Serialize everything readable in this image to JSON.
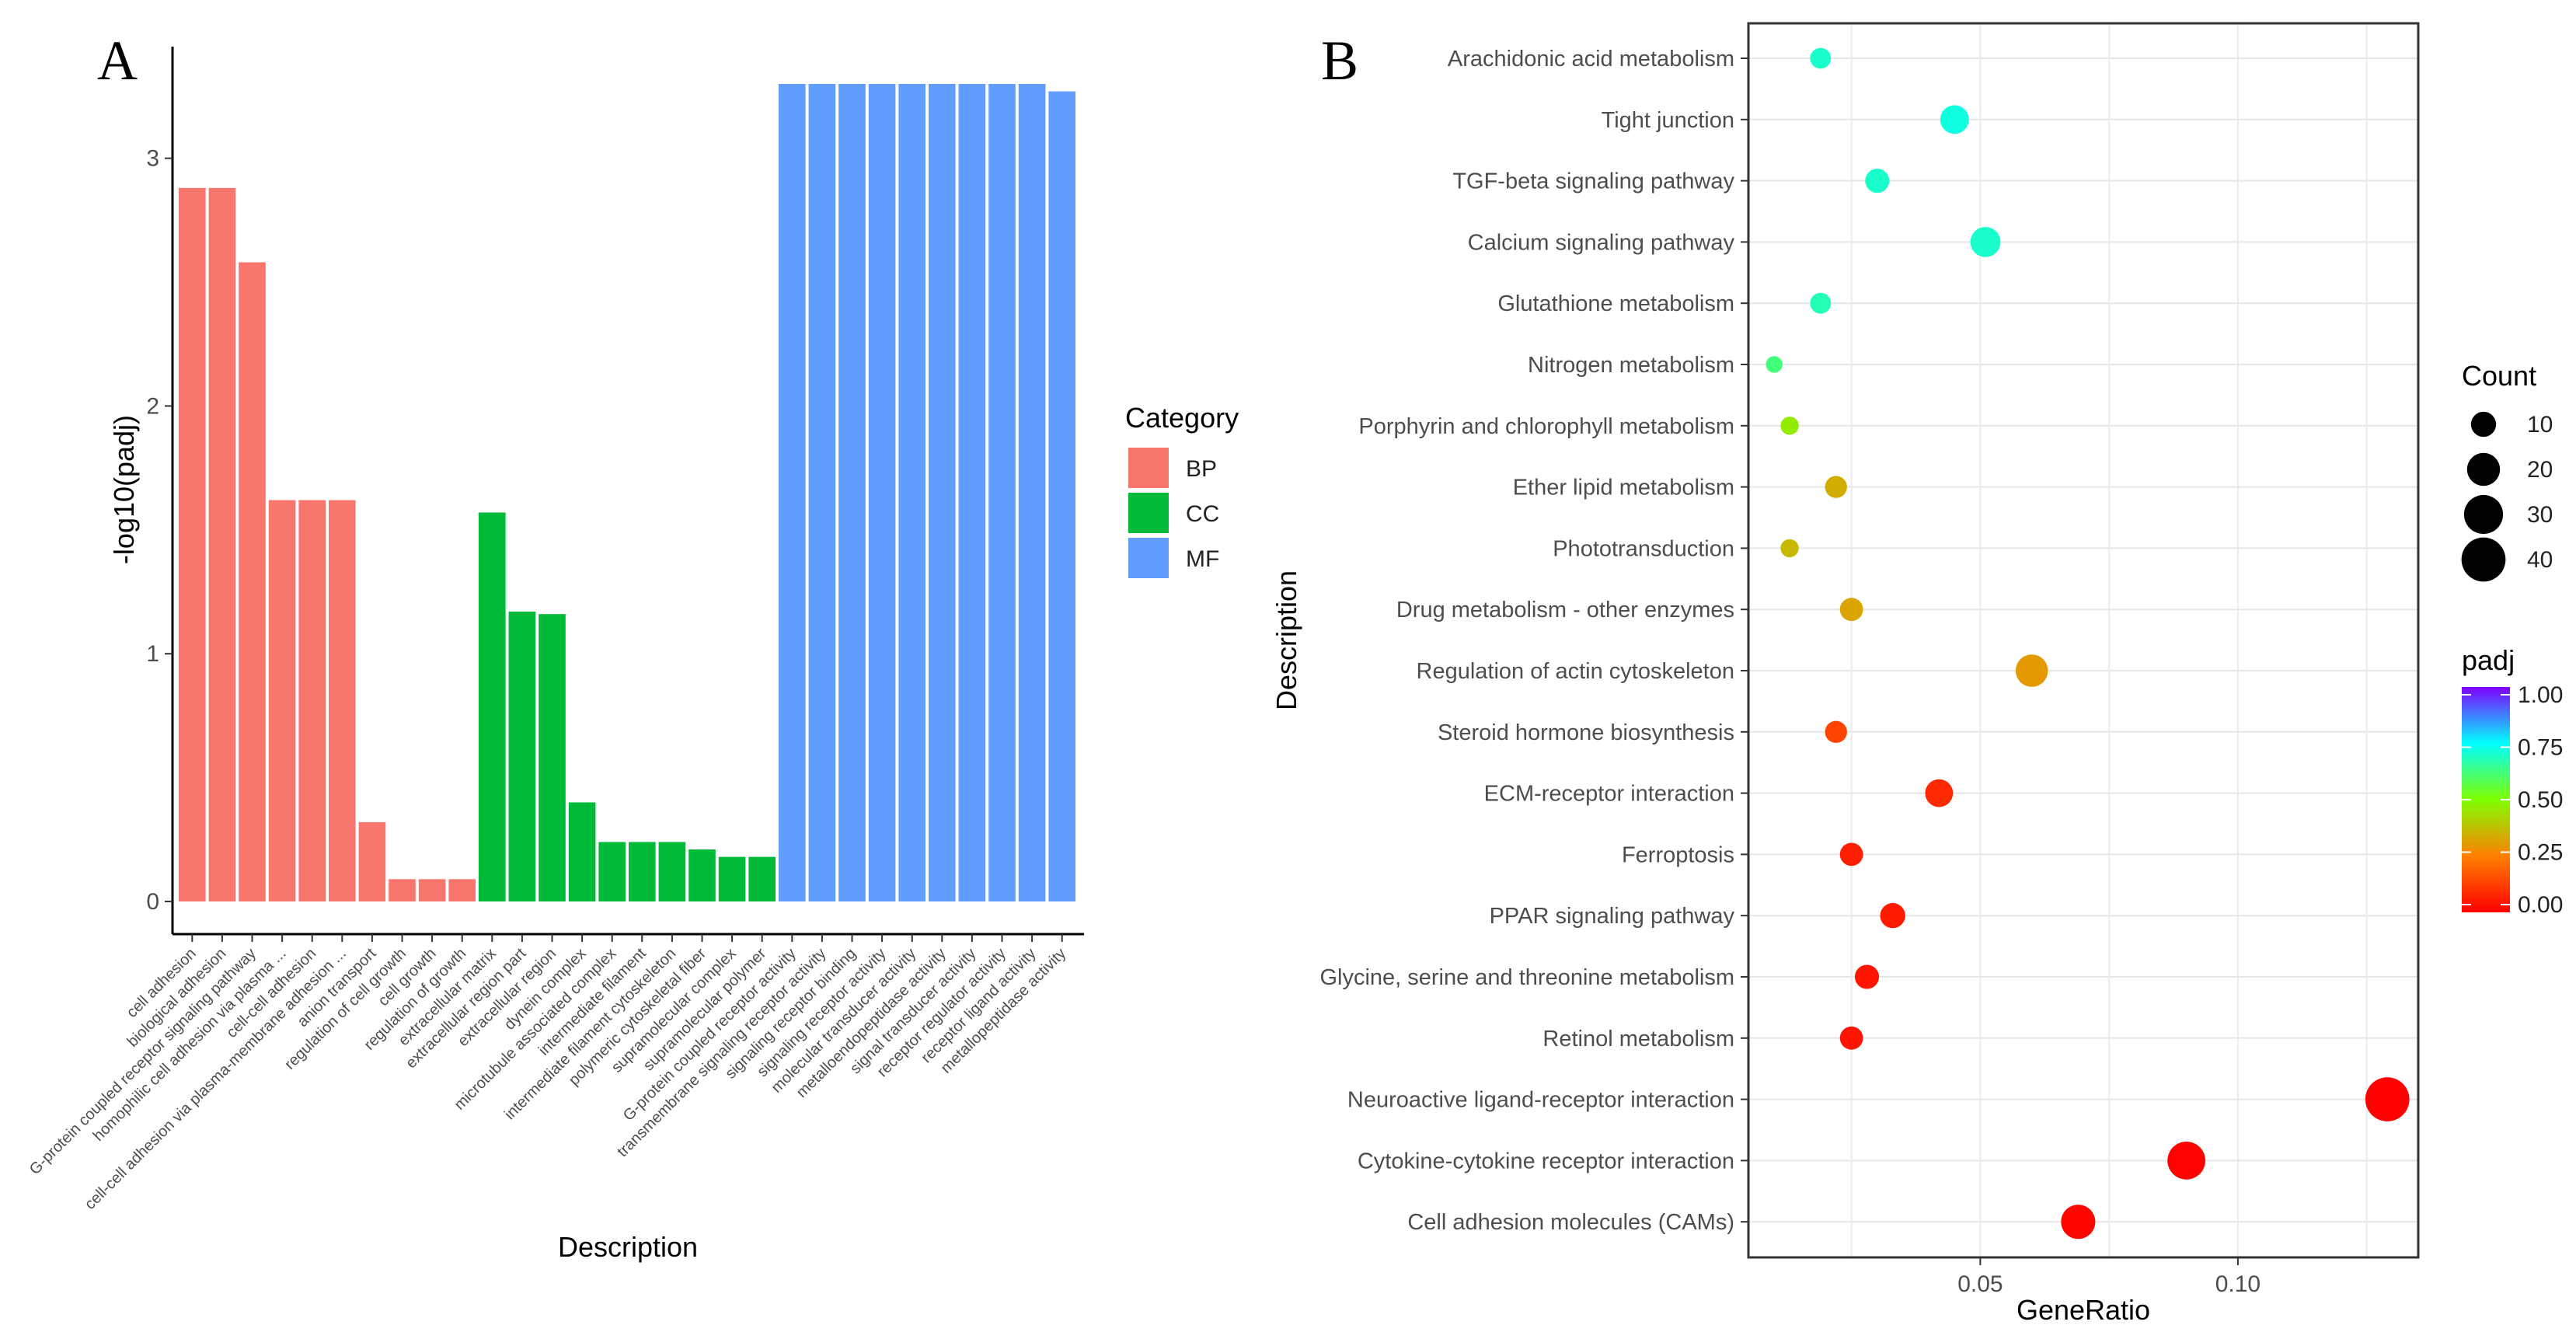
{
  "panel_a_label": "A",
  "panel_b_label": "B",
  "chart_data": [
    {
      "type": "bar",
      "panel": "A",
      "title": "",
      "xlabel": "Description",
      "ylabel": "-log10(padj)",
      "ylim": [
        0,
        3.3
      ],
      "yticks": [
        0,
        1,
        2,
        3
      ],
      "grid": false,
      "legend_title": "Category",
      "legend_position": "right",
      "categories_meta": [
        {
          "name": "BP",
          "color": "#F8766D"
        },
        {
          "name": "CC",
          "color": "#00BA38"
        },
        {
          "name": "MF",
          "color": "#619CFF"
        }
      ],
      "bars": [
        {
          "label": "cell adhesion",
          "value": 2.88,
          "category": "BP"
        },
        {
          "label": "biological adhesion",
          "value": 2.88,
          "category": "BP"
        },
        {
          "label": "G-protein coupled receptor signaling pathway",
          "value": 2.58,
          "category": "BP"
        },
        {
          "label": "homophilic cell adhesion via plasma ...",
          "value": 1.62,
          "category": "BP"
        },
        {
          "label": "cell-cell adhesion",
          "value": 1.62,
          "category": "BP"
        },
        {
          "label": "cell-cell adhesion via plasma-membrane adhesion ...",
          "value": 1.62,
          "category": "BP"
        },
        {
          "label": "anion transport",
          "value": 0.32,
          "category": "BP"
        },
        {
          "label": "regulation of cell growth",
          "value": 0.09,
          "category": "BP"
        },
        {
          "label": "cell growth",
          "value": 0.09,
          "category": "BP"
        },
        {
          "label": "regulation of growth",
          "value": 0.09,
          "category": "BP"
        },
        {
          "label": "extracellular matrix",
          "value": 1.57,
          "category": "CC"
        },
        {
          "label": "extracellular region part",
          "value": 1.17,
          "category": "CC"
        },
        {
          "label": "extracellular region",
          "value": 1.16,
          "category": "CC"
        },
        {
          "label": "dynein complex",
          "value": 0.4,
          "category": "CC"
        },
        {
          "label": "microtubule associated complex",
          "value": 0.24,
          "category": "CC"
        },
        {
          "label": "intermediate filament",
          "value": 0.24,
          "category": "CC"
        },
        {
          "label": "intermediate filament cytoskeleton",
          "value": 0.24,
          "category": "CC"
        },
        {
          "label": "polymeric cytoskeletal fiber",
          "value": 0.21,
          "category": "CC"
        },
        {
          "label": "supramolecular complex",
          "value": 0.18,
          "category": "CC"
        },
        {
          "label": "supramolecular polymer",
          "value": 0.18,
          "category": "CC"
        },
        {
          "label": "G-protein coupled receptor activity",
          "value": 3.3,
          "category": "MF"
        },
        {
          "label": "transmembrane signaling receptor activity",
          "value": 3.3,
          "category": "MF"
        },
        {
          "label": "signaling receptor binding",
          "value": 3.3,
          "category": "MF"
        },
        {
          "label": "signaling receptor activity",
          "value": 3.3,
          "category": "MF"
        },
        {
          "label": "molecular transducer activity",
          "value": 3.3,
          "category": "MF"
        },
        {
          "label": "metalloendopeptidase activity",
          "value": 3.3,
          "category": "MF"
        },
        {
          "label": "signal transducer activity",
          "value": 3.3,
          "category": "MF"
        },
        {
          "label": "receptor regulator activity",
          "value": 3.3,
          "category": "MF"
        },
        {
          "label": "receptor ligand activity",
          "value": 3.3,
          "category": "MF"
        },
        {
          "label": "metallopeptidase activity",
          "value": 3.27,
          "category": "MF"
        }
      ]
    },
    {
      "type": "scatter",
      "panel": "B",
      "title": "",
      "xlabel": "GeneRatio",
      "ylabel": "Description",
      "xlim": [
        0.005,
        0.135
      ],
      "xticks": [
        0.05,
        0.1
      ],
      "xtick_labels": [
        "0.05",
        "0.10"
      ],
      "grid": true,
      "size_legend_title": "Count",
      "size_legend_values": [
        10,
        20,
        30,
        40
      ],
      "color_legend_title": "padj",
      "color_legend_ticks": [
        "1.00",
        "0.75",
        "0.50",
        "0.25",
        "0.00"
      ],
      "color_stops": [
        "#ff0000",
        "#ff8000",
        "#7fff00",
        "#00ffff",
        "#8000ff"
      ],
      "points": [
        {
          "term": "Arachidonic acid metabolism",
          "gene_ratio": 0.019,
          "count": 6,
          "padj": 0.7
        },
        {
          "term": "Tight junction",
          "gene_ratio": 0.045,
          "count": 14,
          "padj": 0.72
        },
        {
          "term": "TGF-beta signaling pathway",
          "gene_ratio": 0.03,
          "count": 9,
          "padj": 0.7
        },
        {
          "term": "Calcium signaling pathway",
          "gene_ratio": 0.051,
          "count": 16,
          "padj": 0.7
        },
        {
          "term": "Glutathione metabolism",
          "gene_ratio": 0.019,
          "count": 6,
          "padj": 0.68
        },
        {
          "term": "Nitrogen metabolism",
          "gene_ratio": 0.01,
          "count": 3,
          "padj": 0.62
        },
        {
          "term": "Porphyrin and chlorophyll metabolism",
          "gene_ratio": 0.013,
          "count": 4,
          "padj": 0.46
        },
        {
          "term": "Ether lipid metabolism",
          "gene_ratio": 0.022,
          "count": 7,
          "padj": 0.34
        },
        {
          "term": "Phototransduction",
          "gene_ratio": 0.013,
          "count": 4,
          "padj": 0.36
        },
        {
          "term": "Drug metabolism - other enzymes",
          "gene_ratio": 0.025,
          "count": 8,
          "padj": 0.32
        },
        {
          "term": "Regulation of actin cytoskeleton",
          "gene_ratio": 0.06,
          "count": 19,
          "padj": 0.3
        },
        {
          "term": "Steroid hormone biosynthesis",
          "gene_ratio": 0.022,
          "count": 7,
          "padj": 0.13
        },
        {
          "term": "ECM-receptor interaction",
          "gene_ratio": 0.042,
          "count": 13,
          "padj": 0.08
        },
        {
          "term": "Ferroptosis",
          "gene_ratio": 0.025,
          "count": 8,
          "padj": 0.06
        },
        {
          "term": "PPAR signaling pathway",
          "gene_ratio": 0.033,
          "count": 10,
          "padj": 0.05
        },
        {
          "term": "Glycine, serine and threonine metabolism",
          "gene_ratio": 0.028,
          "count": 9,
          "padj": 0.04
        },
        {
          "term": "Retinol metabolism",
          "gene_ratio": 0.025,
          "count": 8,
          "padj": 0.04
        },
        {
          "term": "Neuroactive ligand-receptor interaction",
          "gene_ratio": 0.129,
          "count": 40,
          "padj": 0.001
        },
        {
          "term": "Cytokine-cytokine receptor interaction",
          "gene_ratio": 0.09,
          "count": 28,
          "padj": 0.005
        },
        {
          "term": "Cell adhesion molecules (CAMs)",
          "gene_ratio": 0.069,
          "count": 22,
          "padj": 0.01
        }
      ]
    }
  ]
}
